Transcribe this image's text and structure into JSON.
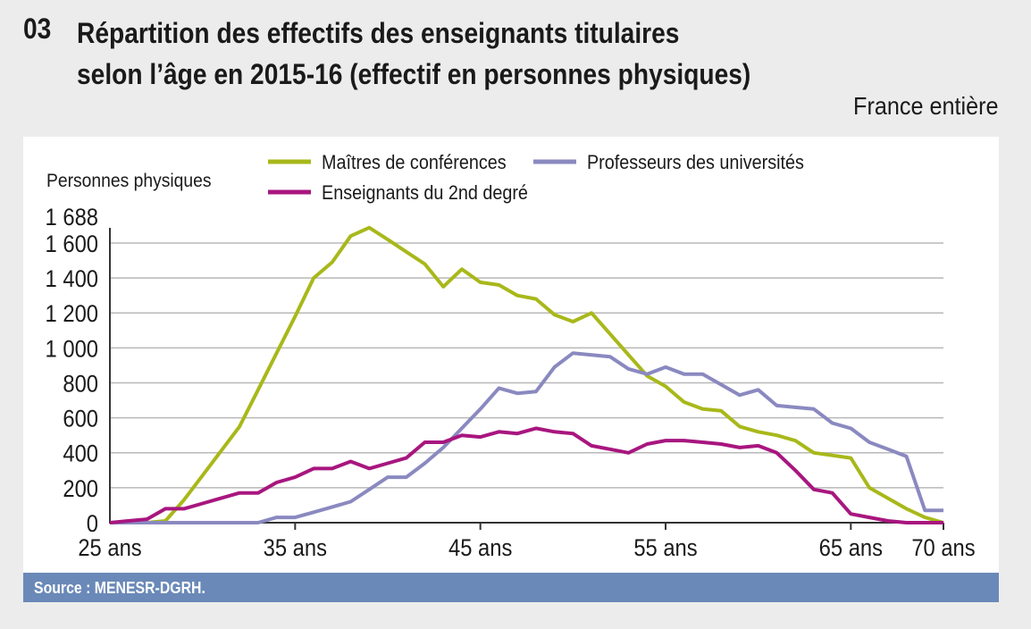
{
  "header": {
    "figure_number": "03",
    "title_line1": "Répartition des effectifs des enseignants titulaires",
    "title_line2": "selon l’âge en 2015-16 (effectif en personnes physiques)",
    "subtitle": "France entière"
  },
  "footer": {
    "source": "Source : MENESR-DGRH."
  },
  "chart_data": {
    "type": "line",
    "title": "Répartition des effectifs des enseignants titulaires selon l’âge en 2015-16 (effectif en personnes physiques)",
    "subtitle": "France entière",
    "ylabel": "Personnes physiques",
    "xlabel": "",
    "ylim": [
      0,
      1688
    ],
    "xlim": [
      25,
      70
    ],
    "yticks": [
      0,
      200,
      400,
      600,
      800,
      1000,
      1200,
      1400,
      1600,
      1688
    ],
    "ytick_labels": [
      "0",
      "200",
      "400",
      "600",
      "800",
      "1 000",
      "1 200",
      "1 400",
      "1 600",
      "1 688"
    ],
    "xticks": [
      25,
      35,
      45,
      55,
      65,
      70
    ],
    "xtick_labels": [
      "25 ans",
      "35 ans",
      "45 ans",
      "55 ans",
      "65 ans",
      "70 ans"
    ],
    "grid": true,
    "legend_position": "top",
    "x": [
      25,
      26,
      27,
      28,
      29,
      30,
      31,
      32,
      33,
      34,
      35,
      36,
      37,
      38,
      39,
      40,
      41,
      42,
      43,
      44,
      45,
      46,
      47,
      48,
      49,
      50,
      51,
      52,
      53,
      54,
      55,
      56,
      57,
      58,
      59,
      60,
      61,
      62,
      63,
      64,
      65,
      66,
      67,
      68,
      69,
      70
    ],
    "series": [
      {
        "name": "Maîtres de conférences",
        "color": "#a8b81a",
        "values": [
          0,
          0,
          0,
          10,
          130,
          270,
          410,
          550,
          760,
          970,
          1180,
          1400,
          1490,
          1640,
          1688,
          1620,
          1550,
          1480,
          1350,
          1450,
          1375,
          1360,
          1300,
          1280,
          1190,
          1150,
          1200,
          1080,
          960,
          840,
          780,
          690,
          650,
          640,
          550,
          520,
          500,
          470,
          400,
          385,
          370,
          200,
          140,
          80,
          30,
          0
        ]
      },
      {
        "name": "Professeurs des universités",
        "color": "#8a89c0",
        "values": [
          0,
          0,
          0,
          0,
          0,
          0,
          0,
          0,
          0,
          30,
          30,
          60,
          90,
          120,
          190,
          260,
          260,
          340,
          430,
          540,
          650,
          770,
          740,
          750,
          890,
          970,
          960,
          950,
          880,
          850,
          890,
          850,
          850,
          790,
          730,
          760,
          670,
          660,
          650,
          570,
          540,
          460,
          420,
          380,
          70,
          70
        ]
      },
      {
        "name": "Enseignants du 2nd degré",
        "color": "#a8167f",
        "values": [
          0,
          10,
          20,
          80,
          80,
          110,
          140,
          170,
          170,
          230,
          260,
          310,
          310,
          350,
          310,
          340,
          370,
          460,
          460,
          500,
          490,
          520,
          510,
          540,
          520,
          510,
          440,
          420,
          400,
          450,
          470,
          470,
          460,
          450,
          430,
          440,
          400,
          300,
          190,
          170,
          50,
          30,
          10,
          0,
          0,
          0
        ]
      }
    ]
  }
}
